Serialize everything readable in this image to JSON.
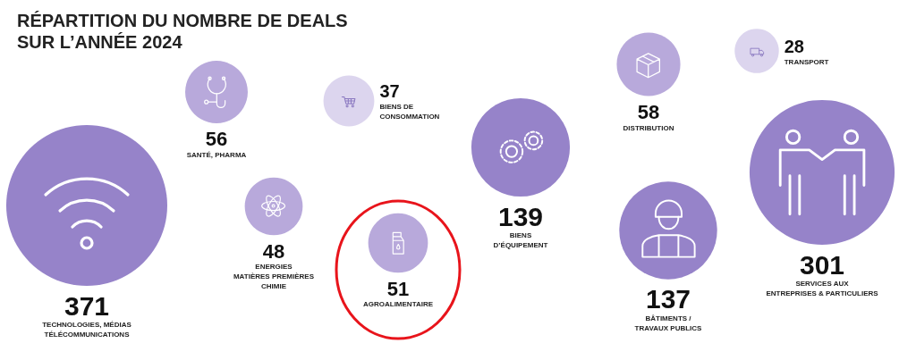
{
  "chart_data": {
    "type": "other",
    "title": "RÉPARTITION DU NOMBRE DE DEALS SUR L’ANNÉE 2024",
    "categories": [
      "TECHNOLOGIES, MÉDIAS\nTÉLÉCOMMUNICATIONS",
      "SANTÉ, PHARMA",
      "ENERGIES\nMATIÈRES PREMIÈRES\nCHIMIE",
      "BIENS DE\nCONSOMMATION",
      "AGROALIMENTAIRE",
      "BIENS\nD’ÉQUIPEMENT",
      "DISTRIBUTION",
      "BÂTIMENTS /\nTRAVAUX PUBLICS",
      "TRANSPORT",
      "SERVICES AUX\nENTREPRISES & PARTICULIERS"
    ],
    "values": [
      371,
      56,
      48,
      37,
      51,
      139,
      58,
      137,
      28,
      301
    ],
    "colors": [
      "#9683c9",
      "#b8a9db",
      "#b8a9db",
      "#dcd5ee",
      "#b8a9db",
      "#9683c9",
      "#b8a9db",
      "#9683c9",
      "#dcd5ee",
      "#9683c9"
    ],
    "data_labels": true
  }
}
